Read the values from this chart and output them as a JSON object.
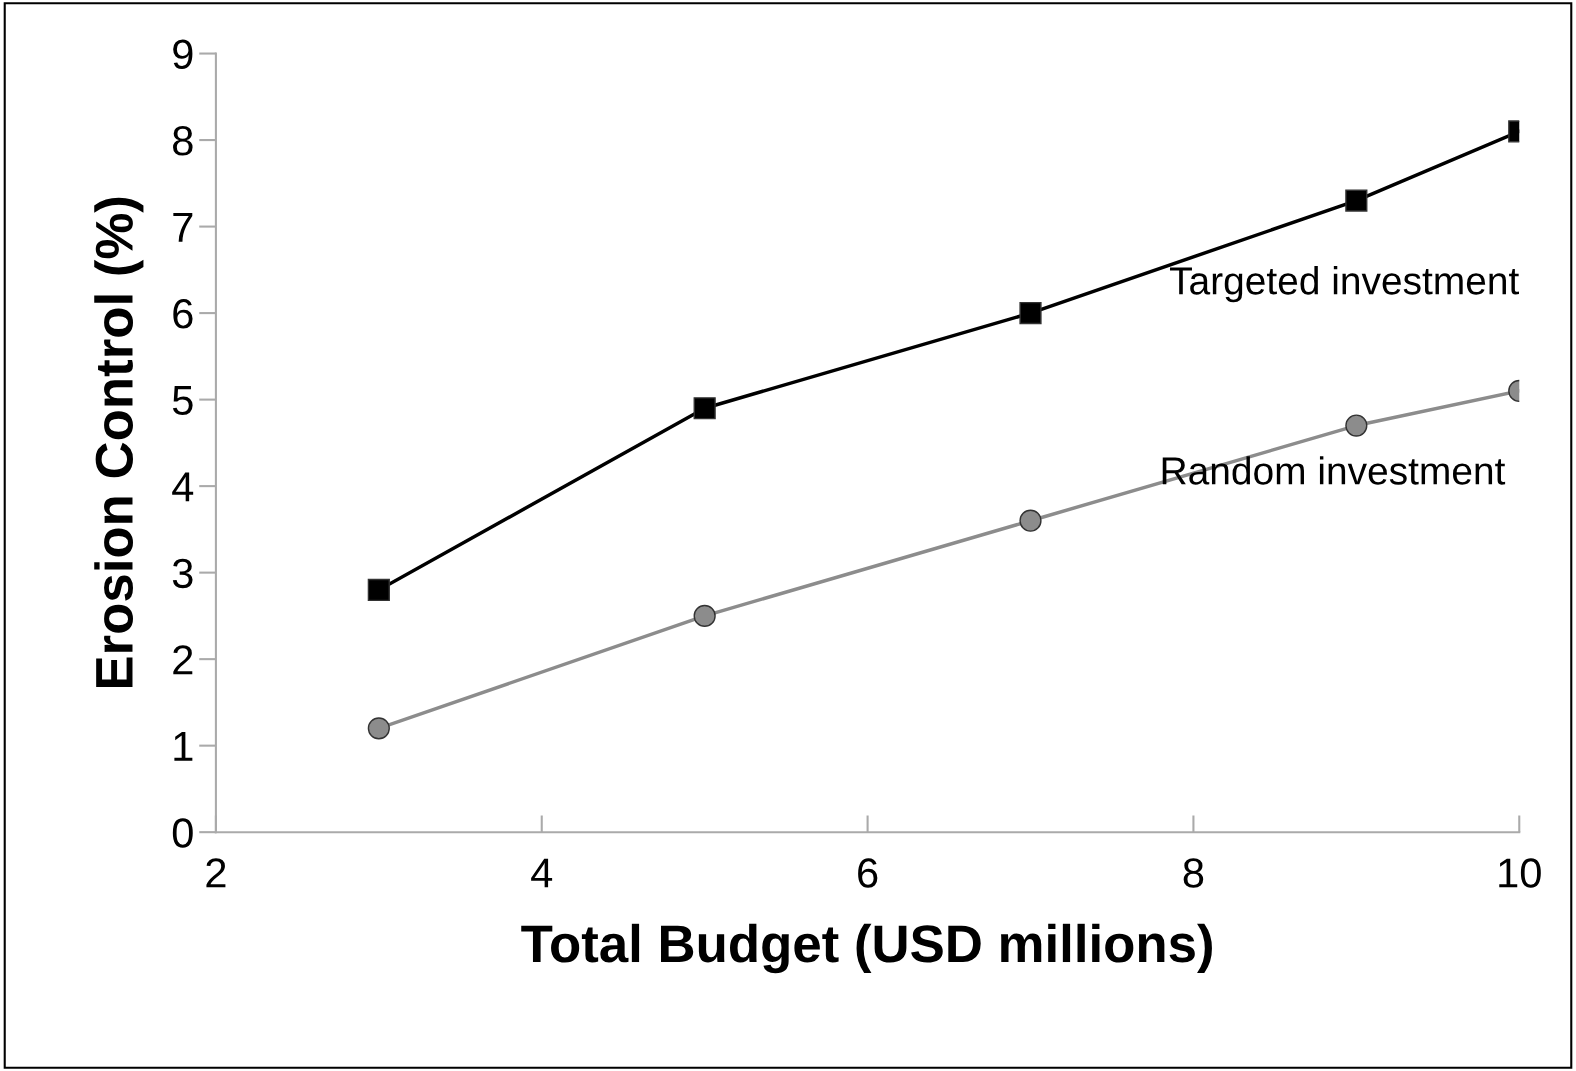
{
  "chart_data": {
    "type": "line",
    "xlabel": "Total Budget (USD millions)",
    "ylabel": "Erosion Control (%)",
    "x": [
      3,
      5,
      7,
      9,
      10
    ],
    "series": [
      {
        "name": "Targeted investment",
        "color": "#000000",
        "marker": "square",
        "values": [
          2.8,
          4.9,
          6.0,
          7.3,
          8.1
        ]
      },
      {
        "name": "Random investment",
        "color": "#8c8c8c",
        "marker": "circle",
        "values": [
          1.2,
          2.5,
          3.6,
          4.7,
          5.1
        ]
      }
    ],
    "xlim": [
      2,
      10
    ],
    "xticks": [
      2,
      4,
      6,
      8,
      10
    ],
    "ylim": [
      0,
      9
    ],
    "yticks": [
      0,
      1,
      2,
      3,
      4,
      5,
      6,
      7,
      8,
      9
    ],
    "grid": false,
    "legend": false,
    "line_style": "solid"
  }
}
